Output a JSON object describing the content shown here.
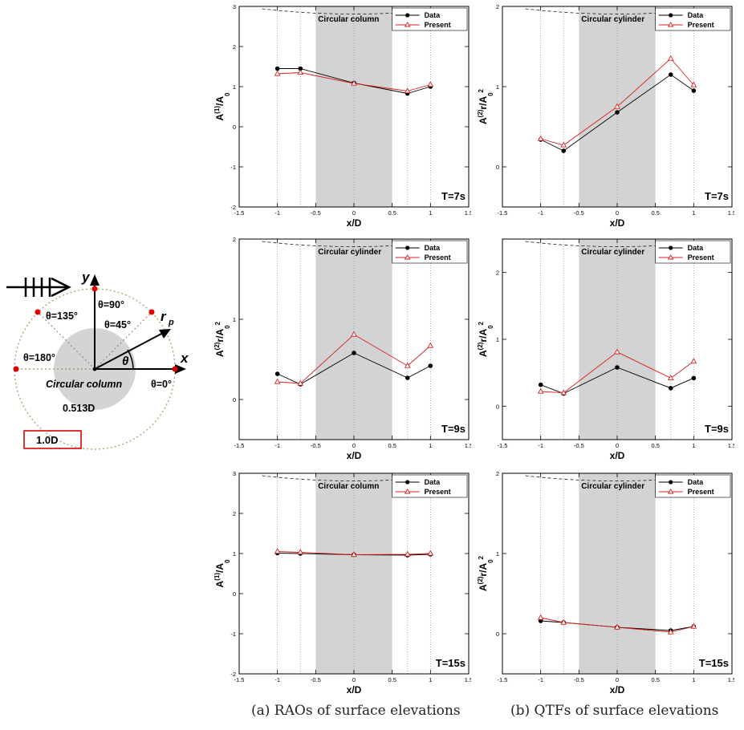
{
  "schematic": {
    "label_y": "y",
    "label_x": "x",
    "label_rp": "r",
    "label_rp_sub": "p",
    "label_theta": "θ",
    "angle_90": "θ=90°",
    "angle_135": "θ=135°",
    "angle_45": "θ=45°",
    "angle_180": "θ=180°",
    "body_label": "Circular column",
    "angle_0": "θ=0°",
    "radius_label": "0.513D",
    "diameter_label": "1.0D",
    "colors": {
      "points": "#e00000",
      "box": "#d92020",
      "disk": "#d4d4d4",
      "circle": "#b8aa7a"
    }
  },
  "captions": {
    "a": "(a) RAOs of surface elevations",
    "b": "(b) QTFs of surface elevations"
  },
  "chart_data": [
    {
      "type": "line",
      "title": "Circular column",
      "period_label": "T=7s",
      "xlabel": "x/D",
      "ylabel": "A(1)/A0",
      "xlim": [
        -1.5,
        1.5
      ],
      "ylim": [
        -2,
        3
      ],
      "x_ticks": [
        "-1.5",
        "-1",
        "-0.5",
        "0",
        "0.5",
        "1",
        "1.5"
      ],
      "y_ticks": [
        "-2",
        "-1",
        "0",
        "1",
        "2",
        "3"
      ],
      "shaded_x_range": [
        -0.5,
        0.5
      ],
      "grid": false,
      "legend_position": "top-right",
      "x": [
        -1,
        -0.7,
        0,
        0.7,
        1
      ],
      "series": [
        {
          "name": "Data",
          "color": "#000000",
          "marker": "filled-circle",
          "values": [
            1.45,
            1.45,
            1.09,
            0.83,
            1.0
          ]
        },
        {
          "name": "Present",
          "color": "#d42020",
          "marker": "open-triangle",
          "values": [
            1.32,
            1.35,
            1.08,
            0.89,
            1.05
          ]
        }
      ]
    },
    {
      "type": "line",
      "title": "Circular cylinder",
      "period_label": "T=7s",
      "xlabel": "x/D",
      "ylabel": "A(2)r/A02",
      "xlim": [
        -1.5,
        1.5
      ],
      "ylim": [
        -0.5,
        2
      ],
      "x_ticks": [
        "-1.5",
        "-1",
        "-0.5",
        "0",
        "0.5",
        "1",
        "1.5"
      ],
      "y_ticks": [
        "0",
        "1",
        "2"
      ],
      "shaded_x_range": [
        -0.5,
        0.5
      ],
      "grid": false,
      "legend_position": "top-right",
      "x": [
        -1,
        -0.7,
        0,
        0.7,
        1
      ],
      "series": [
        {
          "name": "Data",
          "color": "#000000",
          "marker": "filled-circle",
          "values": [
            0.34,
            0.2,
            0.68,
            1.15,
            0.95
          ]
        },
        {
          "name": "Present",
          "color": "#d42020",
          "marker": "open-triangle",
          "values": [
            0.35,
            0.27,
            0.75,
            1.35,
            1.02
          ]
        }
      ]
    },
    {
      "type": "line",
      "title": "Circular cylinder",
      "period_label": "T=9s",
      "xlabel": "x/D",
      "ylabel": "A(2)r/A02",
      "xlim": [
        -1.5,
        1.5
      ],
      "ylim": [
        -0.5,
        2
      ],
      "x_ticks": [
        "-1.5",
        "-1",
        "-0.5",
        "0",
        "0.5",
        "1",
        "1.5"
      ],
      "y_ticks": [
        "0",
        "1",
        "2"
      ],
      "shaded_x_range": [
        -0.5,
        0.5
      ],
      "grid": false,
      "legend_position": "top-right",
      "x": [
        -1,
        -0.7,
        0,
        0.7,
        1
      ],
      "series": [
        {
          "name": "Data",
          "color": "#000000",
          "marker": "filled-circle",
          "values": [
            0.32,
            0.19,
            0.58,
            0.27,
            0.42
          ]
        },
        {
          "name": "Present",
          "color": "#d42020",
          "marker": "open-triangle",
          "values": [
            0.22,
            0.2,
            0.81,
            0.42,
            0.67
          ]
        }
      ]
    },
    {
      "type": "line",
      "title": "Circular cylinder",
      "period_label": "T=9s",
      "xlabel": "x/D",
      "ylabel": "A(2)r/A02",
      "xlim": [
        -1.5,
        1.5
      ],
      "ylim": [
        -0.5,
        2.5
      ],
      "x_ticks": [
        "-1.5",
        "-1",
        "-0.5",
        "0",
        "0.5",
        "1",
        "1.5"
      ],
      "y_ticks": [
        "0",
        "1",
        "2"
      ],
      "shaded_x_range": [
        -0.5,
        0.5
      ],
      "grid": false,
      "legend_position": "top-right",
      "x": [
        -1,
        -0.7,
        0,
        0.7,
        1
      ],
      "series": [
        {
          "name": "Data",
          "color": "#000000",
          "marker": "filled-circle",
          "values": [
            0.32,
            0.19,
            0.58,
            0.27,
            0.42
          ]
        },
        {
          "name": "Present",
          "color": "#d42020",
          "marker": "open-triangle",
          "values": [
            0.22,
            0.2,
            0.81,
            0.42,
            0.67
          ]
        }
      ]
    },
    {
      "type": "line",
      "title": "Circular column",
      "period_label": "T=15s",
      "xlabel": "x/D",
      "ylabel": "A(1)/A0",
      "xlim": [
        -1.5,
        1.5
      ],
      "ylim": [
        -2,
        3
      ],
      "x_ticks": [
        "-1.5",
        "-1",
        "-0.5",
        "0",
        "0.5",
        "1",
        "1.5"
      ],
      "y_ticks": [
        "-2",
        "-1",
        "0",
        "1",
        "2",
        "3"
      ],
      "shaded_x_range": [
        -0.5,
        0.5
      ],
      "grid": false,
      "legend_position": "top-right",
      "x": [
        -1,
        -0.7,
        0,
        0.7,
        1
      ],
      "series": [
        {
          "name": "Data",
          "color": "#000000",
          "marker": "filled-circle",
          "values": [
            1.01,
            1.0,
            0.97,
            0.96,
            0.98
          ]
        },
        {
          "name": "Present",
          "color": "#d42020",
          "marker": "open-triangle",
          "values": [
            1.05,
            1.03,
            0.97,
            0.98,
            1.0
          ]
        }
      ]
    },
    {
      "type": "line",
      "title": "Circular cylinder",
      "period_label": "T=15s",
      "xlabel": "x/D",
      "ylabel": "A(2)r/A02",
      "xlim": [
        -1.5,
        1.5
      ],
      "ylim": [
        -0.5,
        2
      ],
      "x_ticks": [
        "-1.5",
        "-1",
        "-0.5",
        "0",
        "0.5",
        "1",
        "1.5"
      ],
      "y_ticks": [
        "0",
        "1",
        "2"
      ],
      "shaded_x_range": [
        -0.5,
        0.5
      ],
      "grid": false,
      "legend_position": "top-right",
      "x": [
        -1,
        -0.7,
        0,
        0.7,
        1
      ],
      "series": [
        {
          "name": "Data",
          "color": "#000000",
          "marker": "filled-circle",
          "values": [
            0.16,
            0.14,
            0.08,
            0.04,
            0.09
          ]
        },
        {
          "name": "Present",
          "color": "#d42020",
          "marker": "open-triangle",
          "values": [
            0.2,
            0.14,
            0.08,
            0.02,
            0.09
          ]
        }
      ]
    }
  ]
}
